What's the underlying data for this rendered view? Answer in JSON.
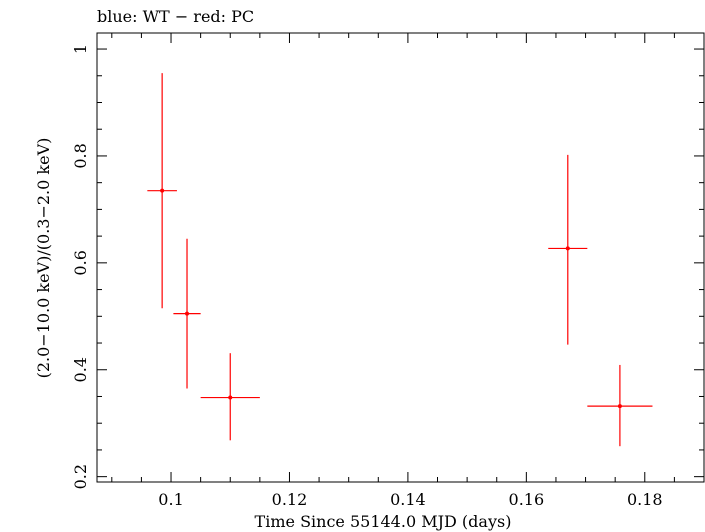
{
  "chart_data": {
    "type": "scatter",
    "title": "blue: WT − red: PC",
    "xlabel": "Time Since 55144.0 MJD (days)",
    "ylabel": "(2.0−10.0 keV)/(0.3−2.0 keV)",
    "xlim": [
      0.0875,
      0.19
    ],
    "ylim": [
      0.19,
      1.03
    ],
    "x_ticks": [
      0.1,
      0.12,
      0.14,
      0.16,
      0.18
    ],
    "x_tick_labels": [
      "0.1",
      "0.12",
      "0.14",
      "0.16",
      "0.18"
    ],
    "y_ticks": [
      0.2,
      0.4,
      0.6,
      0.8,
      1.0
    ],
    "y_tick_labels": [
      "0.2",
      "0.4",
      "0.6",
      "0.8",
      "1"
    ],
    "grid": false,
    "colors": {
      "PC": "#ff0000",
      "WT": "#0000ff"
    },
    "series": [
      {
        "name": "PC",
        "points": [
          {
            "x": 0.0985,
            "y": 0.735,
            "xerr": 0.0025,
            "yerr_low": 0.22,
            "yerr_high": 0.22
          },
          {
            "x": 0.1027,
            "y": 0.505,
            "xerr": 0.0023,
            "yerr_low": 0.14,
            "yerr_high": 0.14
          },
          {
            "x": 0.11,
            "y": 0.348,
            "xerr": 0.005,
            "yerr_low": 0.08,
            "yerr_high": 0.083
          },
          {
            "x": 0.167,
            "y": 0.627,
            "xerr": 0.0033,
            "yerr_low": 0.18,
            "yerr_high": 0.175
          },
          {
            "x": 0.1758,
            "y": 0.332,
            "xerr": 0.0055,
            "yerr_low": 0.075,
            "yerr_high": 0.077
          }
        ]
      }
    ]
  }
}
